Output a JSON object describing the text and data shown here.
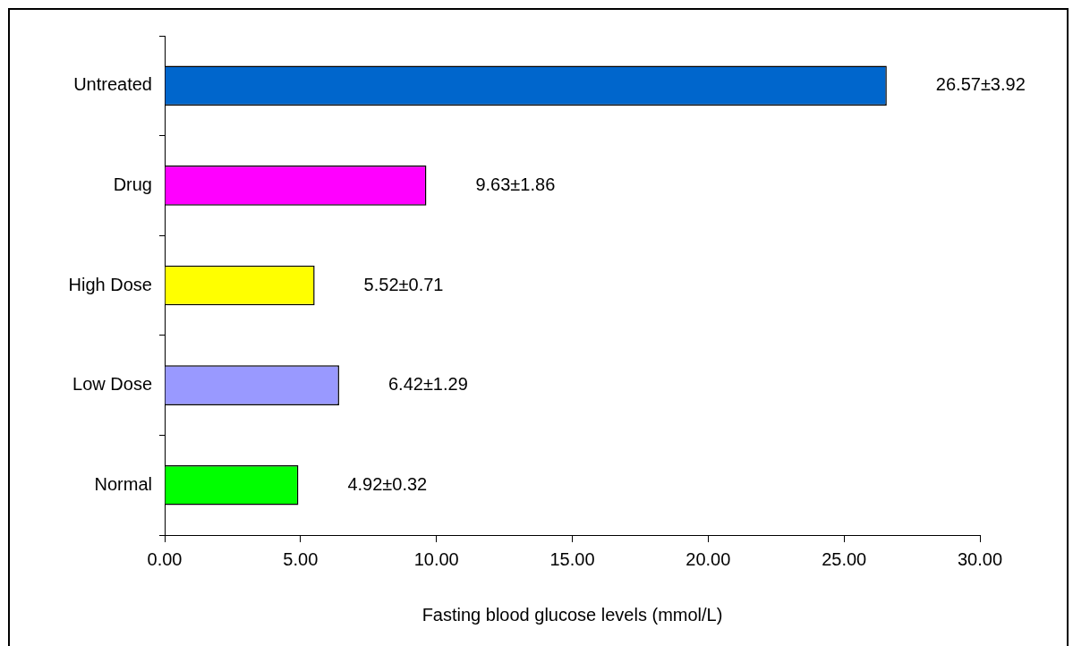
{
  "chart_data": {
    "type": "bar",
    "orientation": "horizontal",
    "xlabel": "Fasting blood glucose levels (mmol/L)",
    "categories": [
      "Untreated",
      "Drug",
      "High Dose",
      "Low Dose",
      "Normal"
    ],
    "values": [
      26.57,
      9.63,
      5.52,
      6.42,
      4.92
    ],
    "colors": [
      "#0066cc",
      "#ff00ff",
      "#ffff00",
      "#9999ff",
      "#00ff00"
    ],
    "value_labels": [
      "26.57±3.92",
      "9.63±1.86",
      "5.52±0.71",
      "6.42±1.29",
      "4.92±0.32"
    ],
    "xlim": [
      0,
      30
    ],
    "xticks": [
      {
        "value": 0,
        "label": "0.00"
      },
      {
        "value": 5,
        "label": "5.00"
      },
      {
        "value": 10,
        "label": "10.00"
      },
      {
        "value": 15,
        "label": "15.00"
      },
      {
        "value": 20,
        "label": "20.00"
      },
      {
        "value": 25,
        "label": "25.00"
      },
      {
        "value": 30,
        "label": "30.00"
      }
    ]
  }
}
